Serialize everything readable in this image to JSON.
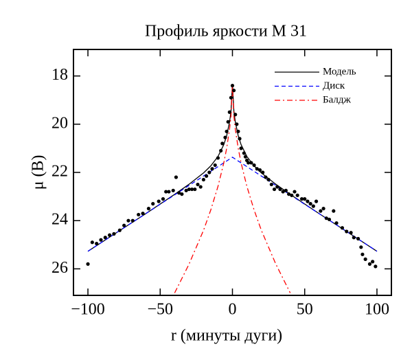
{
  "chart_data": {
    "type": "line",
    "title": "Профиль яркости М 31",
    "x_label": "r (минуты дуги)",
    "y_label": "μ (B)",
    "xlim": [
      -110,
      110
    ],
    "ylim": [
      16.9,
      27.1
    ],
    "y_inverted": true,
    "xticks": [
      {
        "value": -100,
        "label": "−100"
      },
      {
        "value": -50,
        "label": "−50"
      },
      0,
      50,
      100
    ],
    "yticks": [
      18,
      20,
      22,
      24,
      26
    ],
    "legend": "upper right",
    "series": [
      {
        "name": "Модель",
        "color": "#000000",
        "linestyle": "solid",
        "x": [
          -100,
          -80,
          -60,
          -40,
          -30,
          -20,
          -15,
          -10,
          -6,
          -4,
          -2,
          -1,
          0,
          1,
          2,
          4,
          6,
          10,
          15,
          20,
          30,
          40,
          60,
          80,
          100
        ],
        "values": [
          25.27,
          24.49,
          23.71,
          22.91,
          22.49,
          22.02,
          21.73,
          21.34,
          20.85,
          20.48,
          19.91,
          19.46,
          18.33,
          19.46,
          19.91,
          20.48,
          20.85,
          21.34,
          21.73,
          22.02,
          22.49,
          22.91,
          23.71,
          24.49,
          25.27
        ]
      },
      {
        "name": "Диск",
        "color": "#0000ff",
        "linestyle": "dashed",
        "x": [
          -100,
          0,
          100
        ],
        "values": [
          25.27,
          21.37,
          25.27
        ]
      },
      {
        "name": "Балдж",
        "color": "#ff0000",
        "linestyle": "dashdot",
        "x": [
          -40,
          -30,
          -20,
          -15,
          -10,
          -6,
          -4,
          -2,
          -1,
          0,
          1,
          2,
          4,
          6,
          10,
          15,
          20,
          30,
          40
        ],
        "values": [
          27.0,
          25.8,
          24.4,
          23.56,
          22.58,
          21.61,
          21.0,
          20.21,
          19.66,
          18.4,
          19.66,
          20.21,
          21.0,
          21.61,
          22.58,
          23.56,
          24.4,
          25.8,
          27.0
        ]
      },
      {
        "kind": "scatter",
        "color": "#000000",
        "x": [
          -100,
          -97,
          -94,
          -91,
          -88,
          -85,
          -82,
          -78,
          -75,
          -72,
          -69,
          -65,
          -62,
          -58,
          -55,
          -51,
          -48,
          -46,
          -44,
          -41,
          -39,
          -37,
          -35,
          -32,
          -30,
          -28,
          -26,
          -24,
          -22,
          -20,
          -18,
          -16,
          -14,
          -12,
          -10,
          -8,
          -7,
          -5,
          -4,
          -3,
          -2,
          -1,
          0,
          1,
          2,
          3,
          4,
          5,
          6,
          8,
          9,
          10,
          11,
          13,
          15,
          17,
          19,
          21,
          23,
          25,
          27,
          29,
          31,
          33,
          35,
          37,
          39,
          41,
          43,
          45,
          48,
          50,
          52,
          54,
          56,
          58,
          61,
          63,
          65,
          67,
          70,
          72,
          76,
          79,
          82,
          84,
          87,
          89,
          90,
          92,
          95,
          97,
          99
        ],
        "values": [
          25.8,
          24.9,
          24.95,
          24.8,
          24.7,
          24.6,
          24.55,
          24.4,
          24.2,
          24.0,
          24.0,
          23.75,
          23.7,
          23.5,
          23.3,
          23.2,
          23.1,
          22.8,
          22.8,
          22.75,
          22.2,
          22.85,
          22.9,
          22.75,
          22.7,
          22.7,
          22.7,
          22.5,
          22.6,
          22.3,
          22.15,
          22.0,
          21.85,
          21.7,
          21.4,
          21.1,
          20.8,
          20.55,
          20.3,
          19.9,
          19.5,
          18.9,
          18.4,
          18.6,
          19.6,
          20.0,
          20.3,
          20.6,
          21.0,
          21.2,
          21.35,
          21.5,
          21.6,
          21.6,
          21.7,
          21.85,
          21.9,
          22.0,
          22.2,
          22.3,
          22.5,
          22.7,
          22.6,
          22.7,
          22.8,
          22.75,
          22.9,
          22.95,
          22.8,
          22.95,
          23.1,
          23.1,
          23.2,
          23.3,
          23.4,
          23.2,
          23.6,
          23.5,
          23.9,
          23.95,
          23.6,
          24.1,
          24.3,
          24.45,
          24.5,
          24.7,
          24.75,
          25.1,
          25.4,
          25.6,
          25.8,
          25.7,
          25.9
        ]
      }
    ]
  }
}
